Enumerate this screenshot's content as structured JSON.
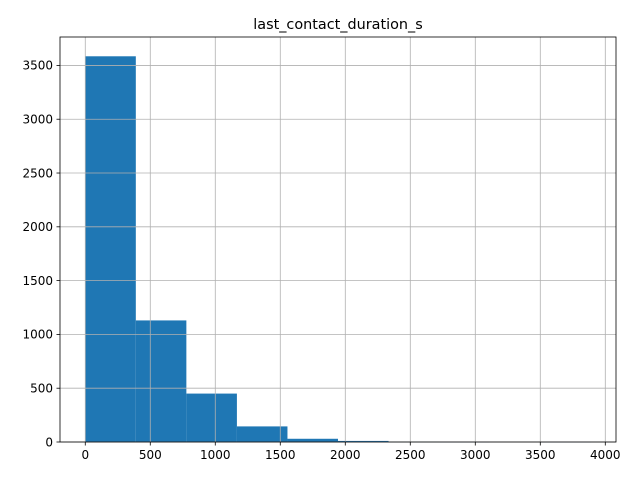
{
  "chart_data": {
    "type": "histogram",
    "title": "last_contact_duration_s",
    "xlabel": "",
    "ylabel": "",
    "bins": [
      {
        "x0": 0,
        "x1": 388.8,
        "count": 3585
      },
      {
        "x0": 388.8,
        "x1": 777.6,
        "count": 1130
      },
      {
        "x0": 777.6,
        "x1": 1166.4,
        "count": 450
      },
      {
        "x0": 1166.4,
        "x1": 1555.2,
        "count": 145
      },
      {
        "x0": 1555.2,
        "x1": 1944.0,
        "count": 30
      },
      {
        "x0": 1944.0,
        "x1": 2332.8,
        "count": 10
      },
      {
        "x0": 2332.8,
        "x1": 2721.6,
        "count": 2
      },
      {
        "x0": 2721.6,
        "x1": 3110.4,
        "count": 1
      },
      {
        "x0": 3110.4,
        "x1": 3499.2,
        "count": 0
      },
      {
        "x0": 3499.2,
        "x1": 3888,
        "count": 1
      }
    ],
    "xlim": [
      -194.4,
      4082.4
    ],
    "ylim": [
      0,
      3764.25
    ],
    "xticks": [
      0,
      500,
      1000,
      1500,
      2000,
      2500,
      3000,
      3500,
      4000
    ],
    "yticks": [
      0,
      500,
      1000,
      1500,
      2000,
      2500,
      3000,
      3500
    ],
    "grid": true,
    "bar_color": "#1f77b4",
    "grid_color": "#b0b0b0"
  }
}
